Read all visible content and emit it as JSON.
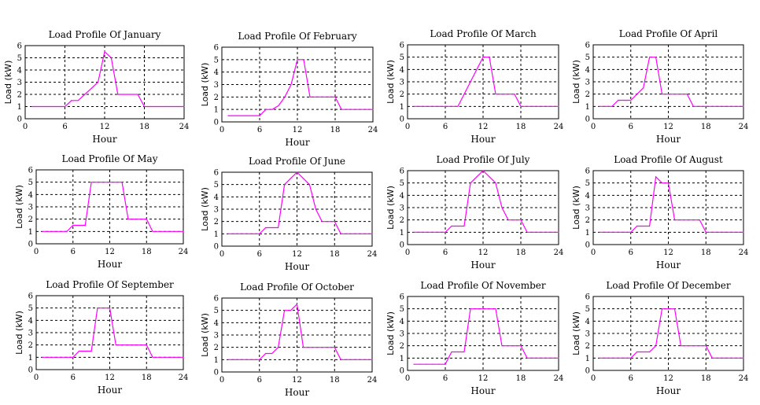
{
  "figure": {
    "layout": "3x4 grid of subplots",
    "line_color": "#ff00ff",
    "grid_color": "#000000"
  },
  "chart_data": [
    {
      "type": "line",
      "title": "Load Profile Of January",
      "xlabel": "Hour",
      "ylabel": "Load (kW)",
      "xlim": [
        0,
        24
      ],
      "ylim": [
        0,
        6
      ],
      "xticks": [
        0,
        6,
        12,
        18,
        24
      ],
      "yticks": [
        0,
        1,
        2,
        3,
        4,
        5,
        6
      ],
      "grid": true,
      "x": [
        1,
        2,
        3,
        4,
        5,
        6,
        7,
        8,
        9,
        10,
        11,
        12,
        13,
        14,
        15,
        16,
        17,
        18,
        19,
        20,
        21,
        22,
        23,
        24
      ],
      "values": [
        1,
        1,
        1,
        1,
        1,
        1,
        1.5,
        1.5,
        2,
        2.5,
        3,
        5.5,
        5,
        2,
        2,
        2,
        2,
        1,
        1,
        1,
        1,
        1,
        1,
        1
      ]
    },
    {
      "type": "line",
      "title": "Load Profile Of February",
      "xlabel": "Hour",
      "ylabel": "Load (kW)",
      "xlim": [
        0,
        24
      ],
      "ylim": [
        0,
        6
      ],
      "xticks": [
        0,
        6,
        12,
        18,
        24
      ],
      "yticks": [
        0,
        1,
        2,
        3,
        4,
        5,
        6
      ],
      "grid": true,
      "x": [
        1,
        2,
        3,
        4,
        5,
        6,
        7,
        8,
        9,
        10,
        11,
        12,
        13,
        14,
        15,
        16,
        17,
        18,
        19,
        20,
        21,
        22,
        23,
        24
      ],
      "values": [
        0.5,
        0.5,
        0.5,
        0.5,
        0.5,
        0.5,
        1,
        1,
        1.3,
        2,
        3,
        5,
        5,
        2,
        2,
        2,
        2,
        2,
        1,
        1,
        1,
        1,
        1,
        1
      ]
    },
    {
      "type": "line",
      "title": "Load Profile Of March",
      "xlabel": "Hour",
      "ylabel": "Load (kW)",
      "xlim": [
        0,
        24
      ],
      "ylim": [
        0,
        6
      ],
      "xticks": [
        0,
        6,
        12,
        18,
        24
      ],
      "yticks": [
        0,
        1,
        2,
        3,
        4,
        5,
        6
      ],
      "grid": true,
      "x": [
        1,
        2,
        3,
        4,
        5,
        6,
        7,
        8,
        9,
        10,
        11,
        12,
        13,
        14,
        15,
        16,
        17,
        18,
        19,
        20,
        21,
        22,
        23,
        24
      ],
      "values": [
        1,
        1,
        1,
        1,
        1,
        1,
        1,
        1,
        2,
        3,
        4,
        5,
        5,
        2,
        2,
        2,
        2,
        1,
        1,
        1,
        1,
        1,
        1,
        1
      ]
    },
    {
      "type": "line",
      "title": "Load Profile Of April",
      "xlabel": "Hour",
      "ylabel": "Load (kW)",
      "xlim": [
        0,
        24
      ],
      "ylim": [
        0,
        6
      ],
      "xticks": [
        0,
        6,
        12,
        18,
        24
      ],
      "yticks": [
        0,
        1,
        2,
        3,
        4,
        5,
        6
      ],
      "grid": true,
      "x": [
        1,
        2,
        3,
        4,
        5,
        6,
        7,
        8,
        9,
        10,
        11,
        12,
        13,
        14,
        15,
        16,
        17,
        18,
        19,
        20,
        21,
        22,
        23,
        24
      ],
      "values": [
        1,
        1,
        1,
        1.5,
        1.5,
        1.5,
        2,
        2.5,
        5,
        5,
        2,
        2,
        2,
        2,
        2,
        1,
        1,
        1,
        1,
        1,
        1,
        1,
        1,
        1
      ]
    },
    {
      "type": "line",
      "title": "Load Profile Of May",
      "xlabel": "Hour",
      "ylabel": "Load (kW)",
      "xlim": [
        0,
        24
      ],
      "ylim": [
        0,
        6
      ],
      "xticks": [
        0,
        6,
        12,
        18,
        24
      ],
      "yticks": [
        0,
        1,
        2,
        3,
        4,
        5,
        6
      ],
      "grid": true,
      "x": [
        1,
        2,
        3,
        4,
        5,
        6,
        7,
        8,
        9,
        10,
        11,
        12,
        13,
        14,
        15,
        16,
        17,
        18,
        19,
        20,
        21,
        22,
        23,
        24
      ],
      "values": [
        1,
        1,
        1,
        1,
        1,
        1.5,
        1.5,
        1.5,
        5,
        5,
        5,
        5,
        5,
        5,
        2,
        2,
        2,
        2,
        1,
        1,
        1,
        1,
        1,
        1
      ]
    },
    {
      "type": "line",
      "title": "Load Profile Of June",
      "xlabel": "Hour",
      "ylabel": "Load (kW)",
      "xlim": [
        0,
        24
      ],
      "ylim": [
        0,
        6
      ],
      "xticks": [
        0,
        6,
        12,
        18,
        24
      ],
      "yticks": [
        0,
        1,
        2,
        3,
        4,
        5,
        6
      ],
      "grid": true,
      "x": [
        1,
        2,
        3,
        4,
        5,
        6,
        7,
        8,
        9,
        10,
        11,
        12,
        13,
        14,
        15,
        16,
        17,
        18,
        19,
        20,
        21,
        22,
        23,
        24
      ],
      "values": [
        1,
        1,
        1,
        1,
        1,
        1,
        1.5,
        1.5,
        1.5,
        5,
        5.5,
        6,
        5.5,
        5,
        3,
        2,
        2,
        2,
        1,
        1,
        1,
        1,
        1,
        1
      ]
    },
    {
      "type": "line",
      "title": "Load Profile Of July",
      "xlabel": "Hour",
      "ylabel": "Load (kW)",
      "xlim": [
        0,
        24
      ],
      "ylim": [
        0,
        6
      ],
      "xticks": [
        0,
        6,
        12,
        18,
        24
      ],
      "yticks": [
        0,
        1,
        2,
        3,
        4,
        5,
        6
      ],
      "grid": true,
      "x": [
        1,
        2,
        3,
        4,
        5,
        6,
        7,
        8,
        9,
        10,
        11,
        12,
        13,
        14,
        15,
        16,
        17,
        18,
        19,
        20,
        21,
        22,
        23,
        24
      ],
      "values": [
        1,
        1,
        1,
        1,
        1,
        1,
        1.5,
        1.5,
        1.5,
        5,
        5.5,
        6,
        5.5,
        5,
        3,
        2,
        2,
        2,
        1,
        1,
        1,
        1,
        1,
        1
      ]
    },
    {
      "type": "line",
      "title": "Load Profile Of August",
      "xlabel": "Hour",
      "ylabel": "Load (kW)",
      "xlim": [
        0,
        24
      ],
      "ylim": [
        0,
        6
      ],
      "xticks": [
        0,
        6,
        12,
        18,
        24
      ],
      "yticks": [
        0,
        1,
        2,
        3,
        4,
        5,
        6
      ],
      "grid": true,
      "x": [
        1,
        2,
        3,
        4,
        5,
        6,
        7,
        8,
        9,
        10,
        11,
        12,
        13,
        14,
        15,
        16,
        17,
        18,
        19,
        20,
        21,
        22,
        23,
        24
      ],
      "values": [
        1,
        1,
        1,
        1,
        1,
        1,
        1.5,
        1.5,
        1.5,
        5.5,
        5,
        5,
        2,
        2,
        2,
        2,
        2,
        1,
        1,
        1,
        1,
        1,
        1,
        1
      ]
    },
    {
      "type": "line",
      "title": "Load Profile Of September",
      "xlabel": "Hour",
      "ylabel": "Load (kW)",
      "xlim": [
        0,
        24
      ],
      "ylim": [
        0,
        6
      ],
      "xticks": [
        0,
        6,
        12,
        18,
        24
      ],
      "yticks": [
        0,
        1,
        2,
        3,
        4,
        5,
        6
      ],
      "grid": true,
      "x": [
        1,
        2,
        3,
        4,
        5,
        6,
        7,
        8,
        9,
        10,
        11,
        12,
        13,
        14,
        15,
        16,
        17,
        18,
        19,
        20,
        21,
        22,
        23,
        24
      ],
      "values": [
        1,
        1,
        1,
        1,
        1,
        1,
        1.5,
        1.5,
        1.5,
        5,
        5,
        5,
        2,
        2,
        2,
        2,
        2,
        2,
        1,
        1,
        1,
        1,
        1,
        1
      ]
    },
    {
      "type": "line",
      "title": "Load Profile Of October",
      "xlabel": "Hour",
      "ylabel": "Load (kW)",
      "xlim": [
        0,
        24
      ],
      "ylim": [
        0,
        6
      ],
      "xticks": [
        0,
        6,
        12,
        18,
        24
      ],
      "yticks": [
        0,
        1,
        2,
        3,
        4,
        5,
        6
      ],
      "grid": true,
      "x": [
        1,
        2,
        3,
        4,
        5,
        6,
        7,
        8,
        9,
        10,
        11,
        12,
        13,
        14,
        15,
        16,
        17,
        18,
        19,
        20,
        21,
        22,
        23,
        24
      ],
      "values": [
        1,
        1,
        1,
        1,
        1,
        1,
        1.5,
        1.5,
        2,
        5,
        5,
        5.5,
        2,
        2,
        2,
        2,
        2,
        2,
        1,
        1,
        1,
        1,
        1,
        1
      ]
    },
    {
      "type": "line",
      "title": "Load Profile Of November",
      "xlabel": "Hour",
      "ylabel": "Load (kW)",
      "xlim": [
        0,
        24
      ],
      "ylim": [
        0,
        6
      ],
      "xticks": [
        0,
        6,
        12,
        18,
        24
      ],
      "yticks": [
        0,
        1,
        2,
        3,
        4,
        5,
        6
      ],
      "grid": true,
      "x": [
        1,
        2,
        3,
        4,
        5,
        6,
        7,
        8,
        9,
        10,
        11,
        12,
        13,
        14,
        15,
        16,
        17,
        18,
        19,
        20,
        21,
        22,
        23,
        24
      ],
      "values": [
        0.5,
        0.5,
        0.5,
        0.5,
        0.5,
        0.5,
        1.5,
        1.5,
        1.5,
        5,
        5,
        5,
        5,
        5,
        2,
        2,
        2,
        2,
        1,
        1,
        1,
        1,
        1,
        1
      ]
    },
    {
      "type": "line",
      "title": "Load Profile Of December",
      "xlabel": "Hour",
      "ylabel": "Load (kW)",
      "xlim": [
        0,
        24
      ],
      "ylim": [
        0,
        6
      ],
      "xticks": [
        0,
        6,
        12,
        18,
        24
      ],
      "yticks": [
        0,
        1,
        2,
        3,
        4,
        5,
        6
      ],
      "grid": true,
      "x": [
        1,
        2,
        3,
        4,
        5,
        6,
        7,
        8,
        9,
        10,
        11,
        12,
        13,
        14,
        15,
        16,
        17,
        18,
        19,
        20,
        21,
        22,
        23,
        24
      ],
      "values": [
        1,
        1,
        1,
        1,
        1,
        1,
        1.5,
        1.5,
        1.5,
        2,
        5,
        5,
        5,
        2,
        2,
        2,
        2,
        2,
        1,
        1,
        1,
        1,
        1,
        1
      ]
    }
  ]
}
